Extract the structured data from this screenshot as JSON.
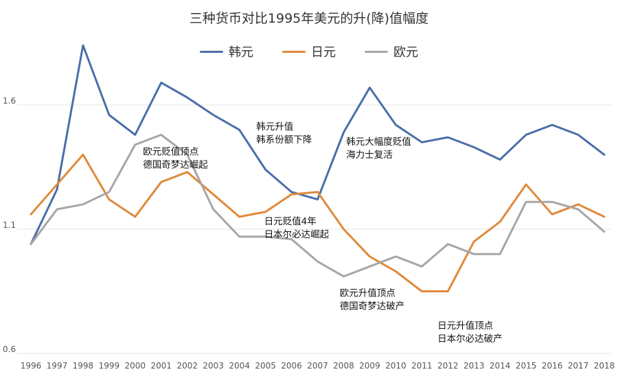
{
  "chart_data": {
    "type": "line",
    "title": "三种货币对比1995年美元的升(降)值幅度",
    "x": [
      1996,
      1997,
      1998,
      1999,
      2000,
      2001,
      2002,
      2003,
      2004,
      2005,
      2006,
      2007,
      2008,
      2009,
      2010,
      2011,
      2012,
      2013,
      2014,
      2015,
      2016,
      2017,
      2018
    ],
    "series": [
      {
        "name": "韩元",
        "color": "#4a6ea8",
        "values": [
          1.04,
          1.26,
          1.84,
          1.56,
          1.48,
          1.69,
          1.63,
          1.56,
          1.5,
          1.34,
          1.25,
          1.22,
          1.49,
          1.67,
          1.52,
          1.45,
          1.47,
          1.43,
          1.38,
          1.48,
          1.52,
          1.48,
          1.4
        ]
      },
      {
        "name": "日元",
        "color": "#e0893a",
        "values": [
          1.16,
          1.28,
          1.4,
          1.22,
          1.15,
          1.29,
          1.33,
          1.24,
          1.15,
          1.17,
          1.24,
          1.25,
          1.1,
          0.99,
          0.93,
          0.85,
          0.85,
          1.05,
          1.13,
          1.28,
          1.16,
          1.2,
          1.15
        ]
      },
      {
        "name": "欧元",
        "color": "#a6a6a6",
        "values": [
          1.04,
          1.18,
          1.2,
          1.25,
          1.44,
          1.48,
          1.4,
          1.18,
          1.07,
          1.07,
          1.06,
          0.97,
          0.91,
          0.95,
          0.99,
          0.95,
          1.04,
          1.0,
          1.0,
          1.21,
          1.21,
          1.18,
          1.09
        ]
      }
    ],
    "ylim": [
      0.6,
      1.85
    ],
    "y_ticks": [
      0.6,
      1.1,
      1.6
    ],
    "y_tick_labels": [
      "0.6",
      "1.1",
      "1.6"
    ],
    "grid": true,
    "legend_position": "top-center",
    "annotations": [
      {
        "lines": [
          "欧元贬值顶点",
          "德国奇梦达崛起"
        ],
        "x": 2000.3,
        "y": 1.4
      },
      {
        "lines": [
          "韩元升值",
          "韩系份额下降"
        ],
        "x": 2004.65,
        "y": 1.5
      },
      {
        "lines": [
          "韩元大幅度贬值",
          "海力士复活"
        ],
        "x": 2008.1,
        "y": 1.44
      },
      {
        "lines": [
          "日元贬值4年",
          "日本尔必达崛起"
        ],
        "x": 2004.95,
        "y": 1.12
      },
      {
        "lines": [
          "欧元升值顶点",
          "德国奇梦达破产"
        ],
        "x": 2007.85,
        "y": 0.83
      },
      {
        "lines": [
          "日元升值顶点",
          "日本尔必达破产"
        ],
        "x": 2011.6,
        "y": 0.7
      }
    ]
  }
}
